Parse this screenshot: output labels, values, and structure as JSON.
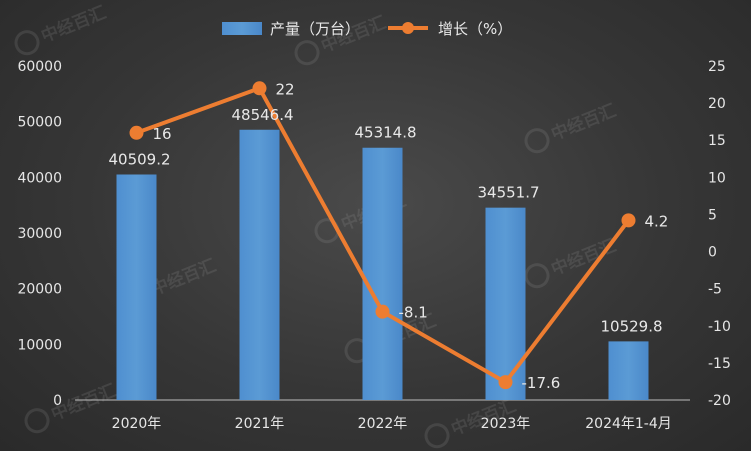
{
  "chart_data": {
    "type": "bar+line",
    "categories": [
      "2020年",
      "2021年",
      "2022年",
      "2023年",
      "2024年1-4月"
    ],
    "series": [
      {
        "name": "产量（万台）",
        "type": "bar",
        "axis": "left",
        "values": [
          40509.2,
          48546.4,
          45314.8,
          34551.7,
          10529.8
        ],
        "labels": [
          "40509.2",
          "48546.4",
          "45314.8",
          "34551.7",
          "10529.8"
        ],
        "color": "#5b9bd5"
      },
      {
        "name": "增长（%）",
        "type": "line",
        "axis": "right",
        "values": [
          16,
          22,
          -8.1,
          -17.6,
          4.2
        ],
        "labels": [
          "16",
          "22",
          "-8.1",
          "-17.6",
          "4.2"
        ],
        "color": "#ed7d31"
      }
    ],
    "y_left": {
      "min": 0,
      "max": 60000,
      "ticks": [
        "0",
        "10000",
        "20000",
        "30000",
        "40000",
        "50000",
        "60000"
      ]
    },
    "y_right": {
      "min": -20,
      "max": 25,
      "ticks": [
        "-20",
        "-15",
        "-10",
        "-5",
        "0",
        "5",
        "10",
        "15",
        "20",
        "25"
      ]
    },
    "legend": {
      "position": "top-center"
    },
    "grid": false
  },
  "watermark": {
    "text": "中经百汇"
  }
}
